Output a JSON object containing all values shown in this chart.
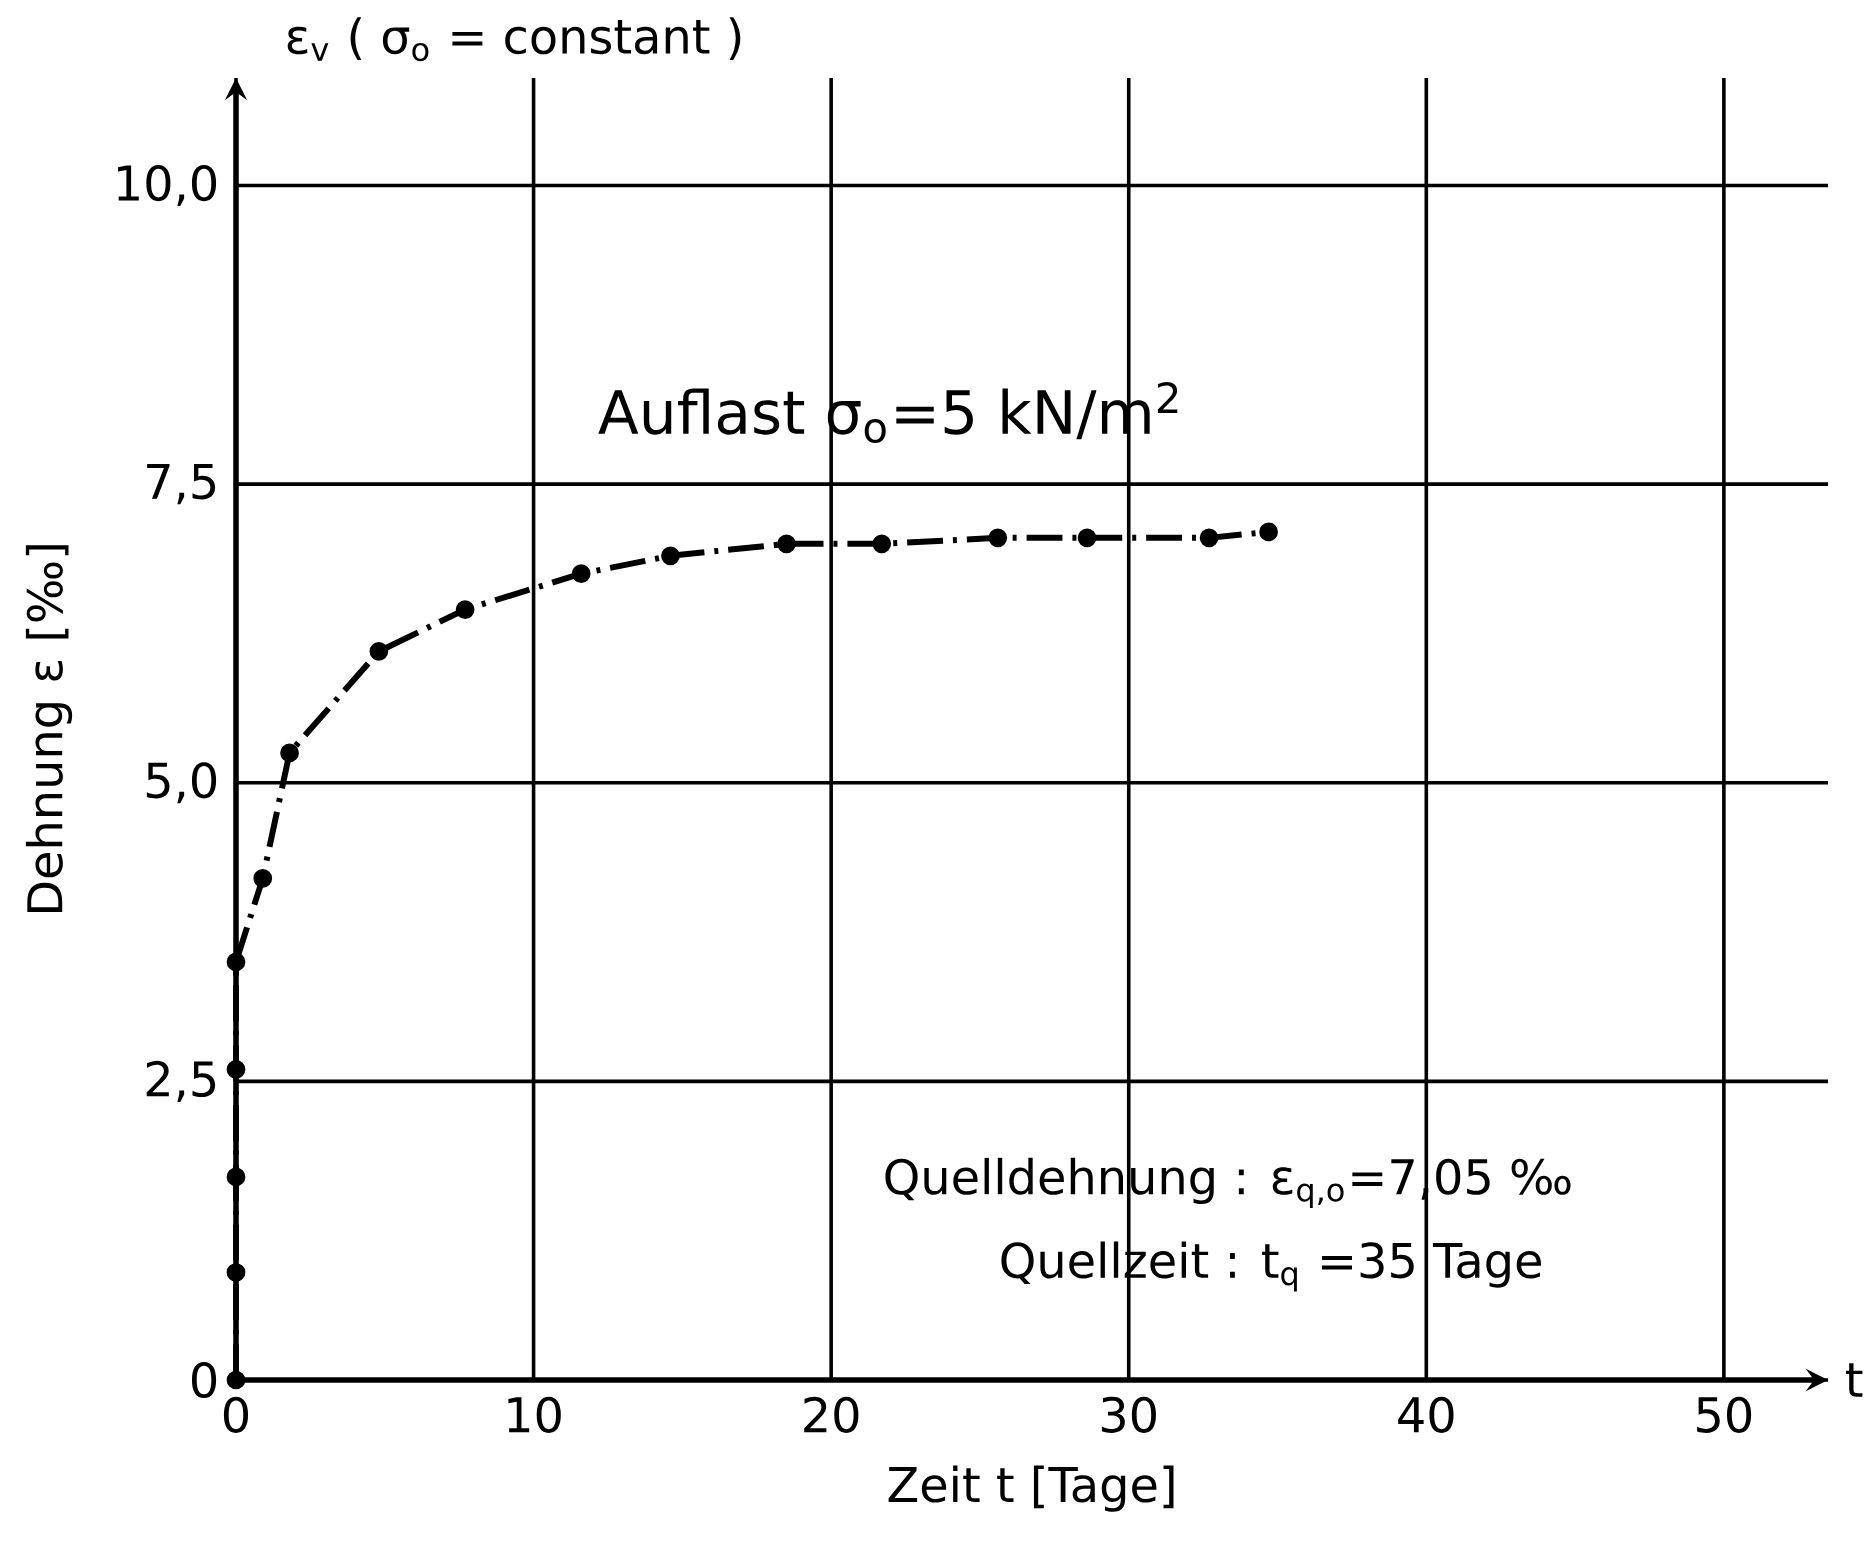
{
  "chart_data": {
    "type": "line",
    "title": "ε$_{v}$ ( σ$_{o}$ = constant )",
    "xlabel": "Zeit t [Tage]",
    "ylabel": "Dehnung ε [‰]",
    "annotations": [
      "Auflast σ$_{o}$=5 kN/m$^{2}$",
      "Quelldehnung : ε$_{q,o}$=7,05 ‰",
      "Quellzeit : t$_{q}$ =35 Tage",
      "t"
    ],
    "x": [
      0,
      0,
      0,
      0,
      0,
      0.9,
      1.8,
      4.8,
      7.7,
      11.6,
      14.6,
      18.5,
      21.7,
      25.6,
      28.6,
      32.7,
      34.7
    ],
    "values": [
      0,
      0.9,
      1.7,
      2.6,
      3.5,
      4.2,
      5.25,
      6.1,
      6.45,
      6.75,
      6.9,
      7.0,
      7.0,
      7.05,
      7.05,
      7.05,
      7.1
    ],
    "color": "#000000",
    "xlim": [
      0,
      53.5
    ],
    "ylim": [
      0,
      10.9
    ],
    "xticks": [
      0,
      10,
      20,
      30,
      40,
      50
    ],
    "yticks": [
      0,
      {
        "value": 2.5,
        "label": "2,5"
      },
      {
        "value": 5,
        "label": "5,0"
      },
      {
        "value": 7.5,
        "label": "7,5"
      },
      {
        "value": 10,
        "label": "10,0"
      }
    ],
    "grid": true,
    "marker": "circle",
    "line_style": "dashed"
  }
}
